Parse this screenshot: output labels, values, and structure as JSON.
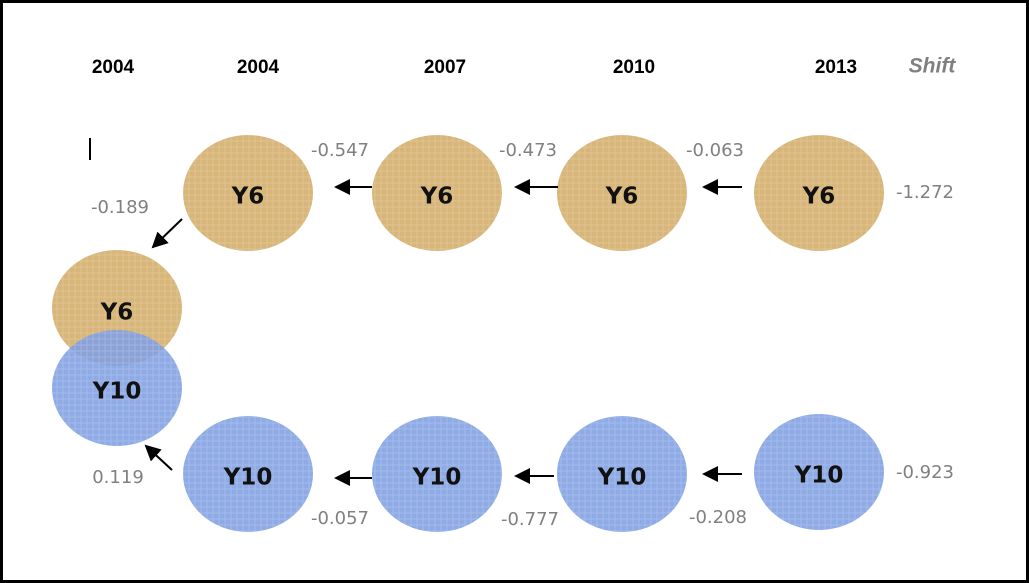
{
  "headers": [
    "2004",
    "2004",
    "2007",
    "2010",
    "2013"
  ],
  "shift_label": "Shift",
  "nodes": [
    {
      "label": "Y6",
      "value": -0.547
    },
    {
      "label": "Y6",
      "value": -0.473
    },
    {
      "label": "Y6",
      "value": -0.063
    },
    {
      "label": "Y6",
      "value": -1.272
    },
    {
      "label": "Y6",
      "value": -0.189
    },
    {
      "label": "Y10",
      "value": 0.119
    },
    {
      "label": "Y10",
      "value": -0.057
    },
    {
      "label": "Y10",
      "value": -0.777
    },
    {
      "label": "Y10",
      "value": -0.208
    },
    {
      "label": "Y10",
      "value": -0.923
    }
  ]
}
